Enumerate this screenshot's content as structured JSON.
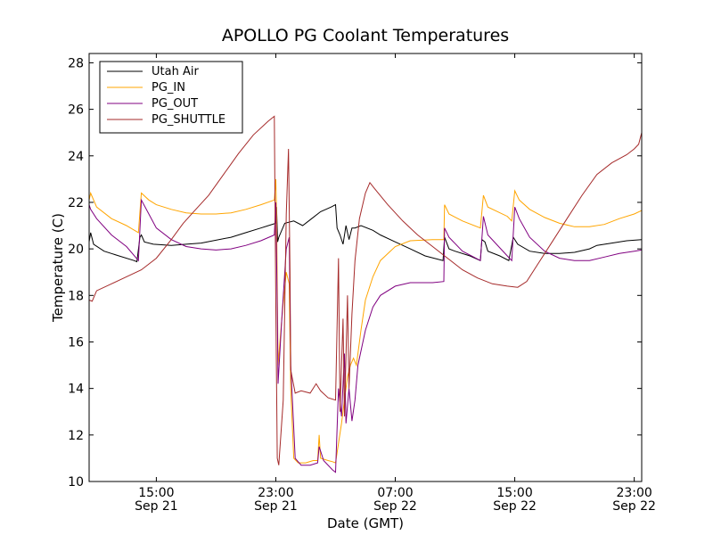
{
  "chart_data": {
    "type": "line",
    "title": "APOLLO PG Coolant Temperatures",
    "xlabel": "Date (GMT)",
    "ylabel": "Temperature (C)",
    "ylim": [
      10,
      28.4
    ],
    "xlim": [
      10.5,
      47.5
    ],
    "yticks": [
      10,
      12,
      14,
      16,
      18,
      20,
      22,
      24,
      26,
      28
    ],
    "xticks": [
      {
        "hour": 15,
        "line1": "15:00",
        "line2": "Sep 21"
      },
      {
        "hour": 23,
        "line1": "23:00",
        "line2": "Sep 21"
      },
      {
        "hour": 31,
        "line1": "07:00",
        "line2": "Sep 22"
      },
      {
        "hour": 39,
        "line1": "15:00",
        "line2": "Sep 22"
      },
      {
        "hour": 47,
        "line1": "23:00",
        "line2": "Sep 22"
      }
    ],
    "x_unit": "hours since Sep 21 00:00 GMT",
    "legend_position": "top-left",
    "series": [
      {
        "name": "Utah Air",
        "color": "#000000",
        "points": [
          [
            10.5,
            20.3
          ],
          [
            10.6,
            20.7
          ],
          [
            10.8,
            20.2
          ],
          [
            11.5,
            19.9
          ],
          [
            12.5,
            19.7
          ],
          [
            13.5,
            19.5
          ],
          [
            13.7,
            19.45
          ],
          [
            13.9,
            20.5
          ],
          [
            14.0,
            20.6
          ],
          [
            14.2,
            20.3
          ],
          [
            14.8,
            20.2
          ],
          [
            16,
            20.15
          ],
          [
            17,
            20.2
          ],
          [
            18,
            20.25
          ],
          [
            20,
            20.5
          ],
          [
            21,
            20.7
          ],
          [
            22,
            20.9
          ],
          [
            23,
            21.1
          ],
          [
            23.05,
            21.8
          ],
          [
            23.12,
            20.3
          ],
          [
            23.2,
            20.5
          ],
          [
            23.6,
            21.1
          ],
          [
            24.2,
            21.2
          ],
          [
            24.8,
            21.0
          ],
          [
            25.4,
            21.3
          ],
          [
            26,
            21.6
          ],
          [
            26.7,
            21.8
          ],
          [
            27.0,
            21.9
          ],
          [
            27.1,
            20.9
          ],
          [
            27.3,
            20.6
          ],
          [
            27.5,
            20.2
          ],
          [
            27.7,
            21.0
          ],
          [
            27.9,
            20.4
          ],
          [
            28.1,
            20.9
          ],
          [
            28.3,
            20.9
          ],
          [
            28.7,
            21.0
          ],
          [
            29.5,
            20.8
          ],
          [
            30,
            20.6
          ],
          [
            31,
            20.3
          ],
          [
            32,
            20.0
          ],
          [
            33,
            19.7
          ],
          [
            34.2,
            19.5
          ],
          [
            34.3,
            20.5
          ],
          [
            34.6,
            20.0
          ],
          [
            35,
            19.9
          ],
          [
            36,
            19.7
          ],
          [
            36.7,
            19.5
          ],
          [
            36.8,
            20.4
          ],
          [
            37.0,
            20.3
          ],
          [
            37.2,
            19.9
          ],
          [
            38,
            19.7
          ],
          [
            38.6,
            19.5
          ],
          [
            38.9,
            20.5
          ],
          [
            39.2,
            20.2
          ],
          [
            40,
            19.9
          ],
          [
            41,
            19.8
          ],
          [
            42,
            19.8
          ],
          [
            43,
            19.85
          ],
          [
            44,
            20.0
          ],
          [
            44.5,
            20.15
          ],
          [
            45.5,
            20.25
          ],
          [
            46.5,
            20.35
          ],
          [
            47.5,
            20.4
          ]
        ]
      },
      {
        "name": "PG_IN",
        "color": "#ffa500",
        "points": [
          [
            10.5,
            22.1
          ],
          [
            10.6,
            22.4
          ],
          [
            11,
            21.8
          ],
          [
            12,
            21.3
          ],
          [
            13,
            21.0
          ],
          [
            13.8,
            20.7
          ],
          [
            14.0,
            22.4
          ],
          [
            14.5,
            22.1
          ],
          [
            15,
            21.9
          ],
          [
            16,
            21.7
          ],
          [
            17,
            21.55
          ],
          [
            18,
            21.5
          ],
          [
            19,
            21.5
          ],
          [
            20,
            21.55
          ],
          [
            21,
            21.7
          ],
          [
            22,
            21.9
          ],
          [
            22.9,
            22.1
          ],
          [
            23.0,
            23.0
          ],
          [
            23.05,
            21.5
          ],
          [
            23.15,
            15.0
          ],
          [
            23.4,
            17.0
          ],
          [
            23.7,
            19.0
          ],
          [
            23.9,
            18.5
          ],
          [
            24.0,
            14.0
          ],
          [
            24.2,
            11.0
          ],
          [
            24.5,
            10.8
          ],
          [
            25.0,
            10.8
          ],
          [
            25.5,
            10.9
          ],
          [
            25.8,
            10.9
          ],
          [
            25.9,
            12.0
          ],
          [
            26.0,
            11.0
          ],
          [
            26.5,
            10.9
          ],
          [
            26.8,
            10.85
          ],
          [
            27.0,
            10.8
          ],
          [
            27.4,
            12.5
          ],
          [
            27.6,
            13.5
          ],
          [
            27.8,
            14.5
          ],
          [
            28.0,
            15.0
          ],
          [
            28.2,
            15.3
          ],
          [
            28.4,
            15.0
          ],
          [
            28.7,
            16.5
          ],
          [
            29,
            17.8
          ],
          [
            29.5,
            18.8
          ],
          [
            30,
            19.5
          ],
          [
            31,
            20.1
          ],
          [
            32,
            20.35
          ],
          [
            33.5,
            20.4
          ],
          [
            34.25,
            20.4
          ],
          [
            34.3,
            21.9
          ],
          [
            34.6,
            21.5
          ],
          [
            35.5,
            21.2
          ],
          [
            36.7,
            20.9
          ],
          [
            36.9,
            22.3
          ],
          [
            37.2,
            21.8
          ],
          [
            38.5,
            21.4
          ],
          [
            38.8,
            21.2
          ],
          [
            39.0,
            22.5
          ],
          [
            39.3,
            22.1
          ],
          [
            40,
            21.7
          ],
          [
            41,
            21.35
          ],
          [
            42,
            21.1
          ],
          [
            43,
            20.95
          ],
          [
            44,
            20.95
          ],
          [
            45,
            21.05
          ],
          [
            46,
            21.3
          ],
          [
            47,
            21.5
          ],
          [
            47.5,
            21.65
          ]
        ]
      },
      {
        "name": "PG_OUT",
        "color": "#800080",
        "points": [
          [
            10.5,
            21.9
          ],
          [
            10.6,
            21.7
          ],
          [
            11,
            21.3
          ],
          [
            12,
            20.6
          ],
          [
            13,
            20.1
          ],
          [
            13.8,
            19.5
          ],
          [
            14.0,
            22.1
          ],
          [
            14.5,
            21.5
          ],
          [
            15,
            20.9
          ],
          [
            16,
            20.4
          ],
          [
            17,
            20.1
          ],
          [
            18,
            20.0
          ],
          [
            19,
            19.95
          ],
          [
            20,
            20.0
          ],
          [
            21,
            20.15
          ],
          [
            22,
            20.35
          ],
          [
            22.9,
            20.6
          ],
          [
            23.0,
            22.0
          ],
          [
            23.1,
            17.5
          ],
          [
            23.15,
            14.2
          ],
          [
            23.4,
            17.0
          ],
          [
            23.7,
            20.0
          ],
          [
            23.9,
            20.5
          ],
          [
            24.0,
            15.0
          ],
          [
            24.3,
            11.0
          ],
          [
            24.7,
            10.7
          ],
          [
            25.3,
            10.7
          ],
          [
            25.8,
            10.8
          ],
          [
            25.9,
            11.5
          ],
          [
            26.2,
            10.9
          ],
          [
            26.8,
            10.5
          ],
          [
            27.0,
            10.4
          ],
          [
            27.2,
            14.0
          ],
          [
            27.4,
            12.8
          ],
          [
            27.6,
            15.5
          ],
          [
            27.7,
            12.5
          ],
          [
            27.9,
            14.0
          ],
          [
            28.1,
            12.6
          ],
          [
            28.3,
            13.5
          ],
          [
            28.5,
            15.0
          ],
          [
            29,
            16.5
          ],
          [
            29.5,
            17.5
          ],
          [
            30,
            18.0
          ],
          [
            31,
            18.4
          ],
          [
            32,
            18.55
          ],
          [
            33.5,
            18.55
          ],
          [
            34.25,
            18.6
          ],
          [
            34.3,
            20.9
          ],
          [
            34.6,
            20.5
          ],
          [
            35.5,
            19.9
          ],
          [
            36.7,
            19.5
          ],
          [
            36.9,
            21.4
          ],
          [
            37.2,
            20.6
          ],
          [
            38.5,
            19.7
          ],
          [
            38.8,
            19.5
          ],
          [
            39.0,
            21.8
          ],
          [
            39.3,
            21.3
          ],
          [
            40,
            20.5
          ],
          [
            41,
            19.9
          ],
          [
            42,
            19.6
          ],
          [
            43,
            19.5
          ],
          [
            44,
            19.5
          ],
          [
            45,
            19.65
          ],
          [
            46,
            19.8
          ],
          [
            47,
            19.9
          ],
          [
            47.5,
            19.95
          ]
        ]
      },
      {
        "name": "PG_SHUTTLE",
        "color": "#a52a2a",
        "points": [
          [
            10.5,
            17.8
          ],
          [
            10.7,
            17.75
          ],
          [
            11,
            18.2
          ],
          [
            12,
            18.5
          ],
          [
            13,
            18.8
          ],
          [
            14,
            19.1
          ],
          [
            15,
            19.6
          ],
          [
            16,
            20.4
          ],
          [
            16.8,
            21.1
          ],
          [
            17.5,
            21.6
          ],
          [
            18.5,
            22.3
          ],
          [
            19.5,
            23.2
          ],
          [
            20.5,
            24.1
          ],
          [
            21.5,
            24.9
          ],
          [
            22.5,
            25.5
          ],
          [
            22.9,
            25.7
          ],
          [
            23.0,
            17.5
          ],
          [
            23.1,
            11.0
          ],
          [
            23.2,
            10.7
          ],
          [
            23.5,
            13.5
          ],
          [
            23.7,
            21.5
          ],
          [
            23.85,
            24.3
          ],
          [
            23.95,
            19.0
          ],
          [
            24.0,
            14.8
          ],
          [
            24.3,
            13.8
          ],
          [
            24.7,
            13.9
          ],
          [
            25.3,
            13.8
          ],
          [
            25.7,
            14.2
          ],
          [
            26.0,
            13.9
          ],
          [
            26.5,
            13.6
          ],
          [
            27.0,
            13.5
          ],
          [
            27.2,
            19.6
          ],
          [
            27.3,
            13.0
          ],
          [
            27.5,
            17.0
          ],
          [
            27.6,
            12.8
          ],
          [
            27.8,
            18.0
          ],
          [
            27.9,
            14.0
          ],
          [
            28.1,
            17.2
          ],
          [
            28.3,
            19.5
          ],
          [
            28.6,
            21.3
          ],
          [
            29,
            22.4
          ],
          [
            29.3,
            22.85
          ],
          [
            29.6,
            22.6
          ],
          [
            30.5,
            21.9
          ],
          [
            31.5,
            21.2
          ],
          [
            32.5,
            20.6
          ],
          [
            33.5,
            20.1
          ],
          [
            34.5,
            19.6
          ],
          [
            35.5,
            19.1
          ],
          [
            36.5,
            18.75
          ],
          [
            37.5,
            18.5
          ],
          [
            38.5,
            18.4
          ],
          [
            39.2,
            18.35
          ],
          [
            39.8,
            18.6
          ],
          [
            40.5,
            19.3
          ],
          [
            41.5,
            20.3
          ],
          [
            42.5,
            21.3
          ],
          [
            43.5,
            22.3
          ],
          [
            44.5,
            23.2
          ],
          [
            45.5,
            23.7
          ],
          [
            46.5,
            24.05
          ],
          [
            47.0,
            24.3
          ],
          [
            47.3,
            24.5
          ],
          [
            47.5,
            25.0
          ]
        ]
      }
    ]
  }
}
